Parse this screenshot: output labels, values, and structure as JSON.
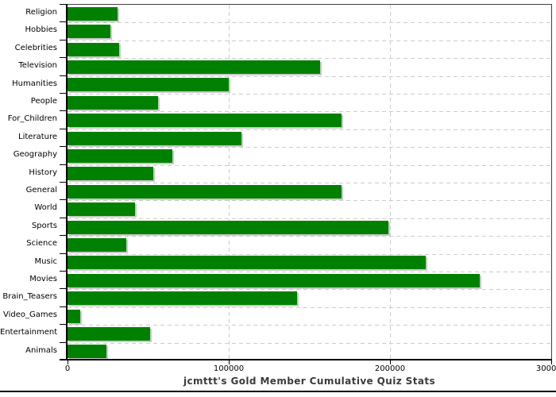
{
  "chart_data": {
    "type": "bar",
    "orientation": "horizontal",
    "title": "jcmttt's Gold Member Cumulative Quiz Stats",
    "categories": [
      "Religion",
      "Hobbies",
      "Celebrities",
      "Television",
      "Humanities",
      "People",
      "For_Children",
      "Literature",
      "Geography",
      "History",
      "General",
      "World",
      "Sports",
      "Science",
      "Music",
      "Movies",
      "Brain_Teasers",
      "Video_Games",
      "Entertainment",
      "Animals"
    ],
    "values": [
      31000,
      26500,
      32000,
      156500,
      100000,
      56000,
      170000,
      108000,
      65000,
      53000,
      170000,
      42000,
      199000,
      36500,
      222000,
      255500,
      142500,
      7700,
      51000,
      24000
    ],
    "xlim": [
      0,
      300000
    ],
    "x_ticks": [
      0,
      100000,
      200000,
      300000
    ],
    "x_tick_labels": [
      "0",
      "100000",
      "200000",
      "300000"
    ],
    "xlabel": "",
    "ylabel": "",
    "legend": "none",
    "grid": "dashed",
    "bar_color": "#008000",
    "bar_shadow_color": "#c9c9c9",
    "grid_color": "#cccccc",
    "axis_color": "#000000",
    "frame_color": "#404040",
    "title_color": "#3b3b3b"
  }
}
